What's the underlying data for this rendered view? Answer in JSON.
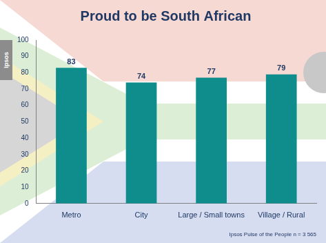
{
  "chart_data": {
    "type": "bar",
    "title": "Proud to be South African",
    "categories": [
      "Metro",
      "City",
      "Large / Small towns",
      "Village / Rural"
    ],
    "values": [
      83,
      74,
      77,
      79
    ],
    "color": "#0f8c8c",
    "ylim": [
      0,
      100
    ],
    "yticks": [
      0,
      10,
      20,
      30,
      40,
      50,
      60,
      70,
      80,
      90,
      100
    ],
    "grid": false,
    "data_labels": true,
    "annotations": [
      "Ipsos Pulse of the People n = 3 565",
      "Ipsos"
    ]
  }
}
